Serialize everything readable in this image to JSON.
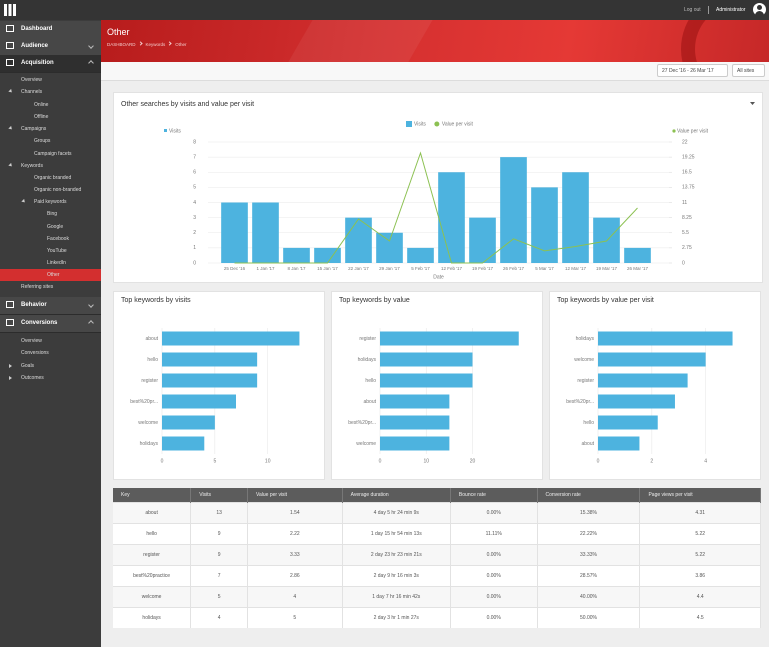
{
  "topbar": {
    "logout": "Log out",
    "user": "Administrator"
  },
  "sidebar": {
    "items": [
      "Dashboard",
      "Audience",
      "Acquisition",
      "Overview",
      "Channels",
      "Online",
      "Offline",
      "Campaigns",
      "Groups",
      "Campaign facets",
      "Keywords",
      "Organic branded",
      "Organic non-branded",
      "Paid keywords",
      "Bing",
      "Google",
      "Facebook",
      "YouTube",
      "LinkedIn",
      "Other",
      "Referring sites",
      "Behavior",
      "Conversions",
      "Overview",
      "Conversions",
      "Goals",
      "Outcomes"
    ]
  },
  "header": {
    "title": "Other",
    "breadcrumb": [
      "DASHBOARD",
      "Keywords",
      "Other"
    ],
    "date_range": "27 Dec '16 - 26 Mar '17",
    "site": "All sites"
  },
  "chart_data": [
    {
      "type": "bar",
      "title": "Other searches by visits and value per visit",
      "xlabel": "Date",
      "ylabel": "Visits",
      "y2label": "Value per visit",
      "legend": "top",
      "categories": [
        "25 Dec '16",
        "1 Jan '17",
        "8 Jan '17",
        "15 Jan '17",
        "22 Jan '17",
        "29 Jan '17",
        "5 Feb '17",
        "12 Feb '17",
        "19 Feb '17",
        "26 Feb '17",
        "5 Mar '17",
        "12 Mar '17",
        "19 Mar '17",
        "26 Mar '17"
      ],
      "series": [
        {
          "name": "Visits",
          "color": "#4db3df",
          "values": [
            4,
            4,
            1,
            1,
            3,
            2,
            1,
            6,
            3,
            7,
            5,
            6,
            3,
            1
          ]
        },
        {
          "name": "Value per visit",
          "type": "line",
          "axis": "y2",
          "color": "#8cc152",
          "values": [
            0,
            0,
            0,
            0,
            8,
            4,
            20,
            0,
            0,
            4.4,
            2.2,
            3,
            4,
            10
          ]
        }
      ],
      "ylim": [
        0,
        8
      ],
      "yticks": [
        0,
        1,
        2,
        3,
        4,
        5,
        6,
        7,
        8
      ],
      "y2lim": [
        0,
        22
      ],
      "y2ticks": [
        0,
        2.75,
        5.5,
        8.25,
        11,
        13.75,
        16.5,
        19.25,
        22
      ],
      "grid": true
    },
    {
      "type": "barh",
      "title": "Top keywords by visits",
      "categories": [
        "about",
        "hello",
        "register",
        "best%20pr...",
        "welcome",
        "holidays"
      ],
      "values": [
        13,
        9,
        9,
        7,
        5,
        4
      ],
      "color": "#4db3df",
      "xlim": [
        0,
        14
      ],
      "xticks": [
        0,
        5,
        10
      ],
      "grid": true
    },
    {
      "type": "barh",
      "title": "Top keywords by value",
      "categories": [
        "register",
        "holidays",
        "hello",
        "about",
        "best%20pr...",
        "welcome"
      ],
      "values": [
        30,
        20,
        20,
        15,
        15,
        15
      ],
      "color": "#4db3df",
      "xlim": [
        0,
        32
      ],
      "xticks": [
        0,
        10,
        20
      ],
      "grid": true
    },
    {
      "type": "barh",
      "title": "Top keywords by value per visit",
      "categories": [
        "holidays",
        "welcome",
        "register",
        "best%20pr...",
        "hello",
        "about"
      ],
      "values": [
        5,
        4,
        3.33,
        2.86,
        2.22,
        1.54
      ],
      "color": "#4db3df",
      "xlim": [
        0,
        5.5
      ],
      "xticks": [
        0,
        2,
        4
      ],
      "grid": true
    }
  ],
  "table": {
    "columns": [
      "Key",
      "Visits",
      "Value per visit",
      "Average duration",
      "Bounce rate",
      "Conversion rate",
      "Page views per visit"
    ],
    "rows": [
      [
        "about",
        "13",
        "1.54",
        "4 day 5 hr 24 min 9s",
        "0.00%",
        "15.38%",
        "4.31"
      ],
      [
        "hello",
        "9",
        "2.22",
        "1 day 15 hr 54 min 13s",
        "11.11%",
        "22.22%",
        "5.22"
      ],
      [
        "register",
        "9",
        "3.33",
        "2 day 23 hr 23 min 21s",
        "0.00%",
        "33.33%",
        "5.22"
      ],
      [
        "best%20practice",
        "7",
        "2.86",
        "2 day 9 hr 16 min 3s",
        "0.00%",
        "28.57%",
        "3.86"
      ],
      [
        "welcome",
        "5",
        "4",
        "1 day 7 hr 16 min 42s",
        "0.00%",
        "40.00%",
        "4.4"
      ],
      [
        "holidays",
        "4",
        "5",
        "2 day 3 hr 1 min 27s",
        "0.00%",
        "50.00%",
        "4.5"
      ]
    ]
  }
}
